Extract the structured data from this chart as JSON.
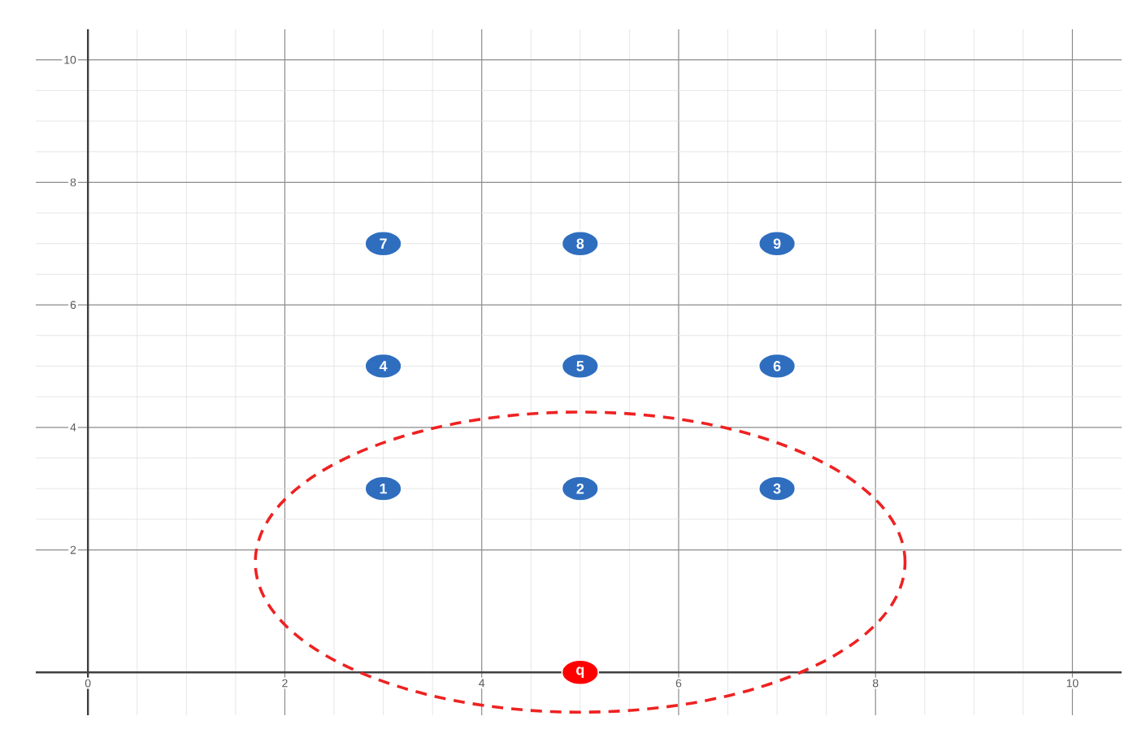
{
  "chart_data": {
    "type": "scatter",
    "xlim": [
      -0.53,
      10.5
    ],
    "ylim": [
      -0.7,
      10.5
    ],
    "xticks": [
      0,
      2,
      4,
      6,
      8,
      10
    ],
    "yticks": [
      2,
      4,
      6,
      8,
      10
    ],
    "grid": true,
    "marker": "circle",
    "series": [
      {
        "color": "#2f6ebf",
        "x": [
          3,
          5,
          7,
          3,
          5,
          7,
          3,
          5,
          7
        ],
        "values": [
          3,
          3,
          3,
          5,
          5,
          5,
          7,
          7,
          7
        ]
      },
      {
        "color": "#ff0000",
        "x": [
          5
        ],
        "values": [
          0
        ]
      }
    ],
    "annotations": [
      {
        "text": "1",
        "x": 3,
        "y": 3
      },
      {
        "text": "2",
        "x": 5,
        "y": 3
      },
      {
        "text": "3",
        "x": 7,
        "y": 3
      },
      {
        "text": "4",
        "x": 3,
        "y": 5
      },
      {
        "text": "5",
        "x": 5,
        "y": 5
      },
      {
        "text": "6",
        "x": 7,
        "y": 5
      },
      {
        "text": "7",
        "x": 3,
        "y": 7
      },
      {
        "text": "8",
        "x": 5,
        "y": 7
      },
      {
        "text": "9",
        "x": 7,
        "y": 7
      },
      {
        "text": "q",
        "x": 5,
        "y": 0
      }
    ]
  }
}
